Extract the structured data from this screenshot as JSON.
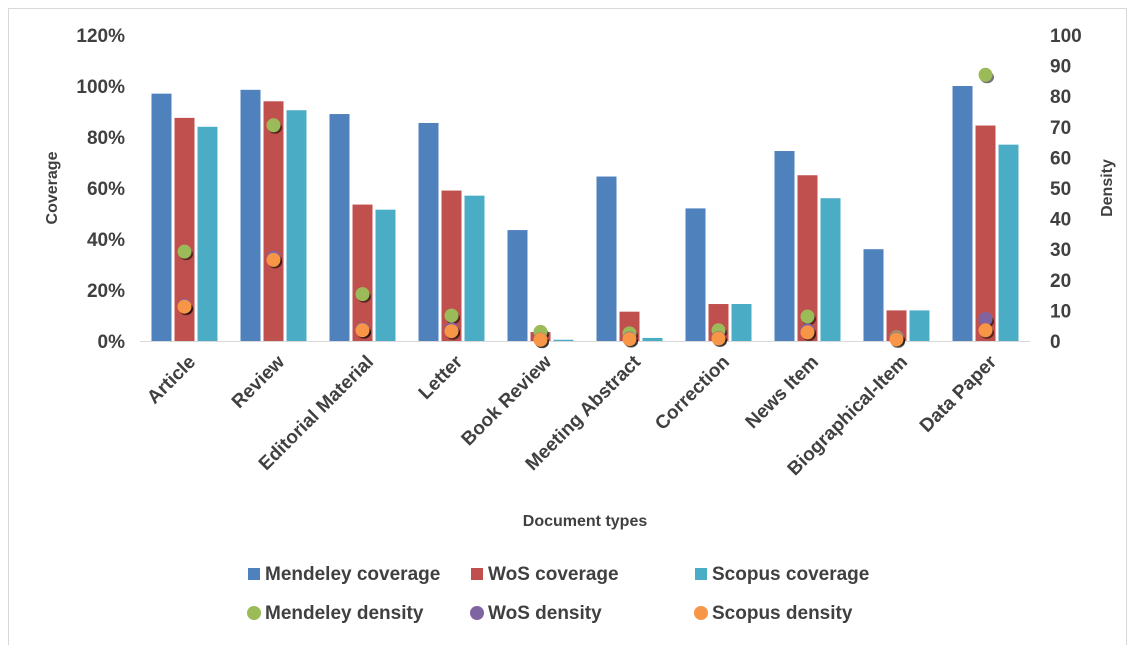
{
  "chart_data": {
    "type": "bar",
    "xlabel": "Document types",
    "ylabel": "Coverage",
    "y2label": "Density",
    "ylim": [
      0,
      1.2
    ],
    "y2lim": [
      0,
      100
    ],
    "yticks": [
      "0%",
      "20%",
      "40%",
      "60%",
      "80%",
      "100%",
      "120%"
    ],
    "y2ticks": [
      "0",
      "10",
      "20",
      "30",
      "40",
      "50",
      "60",
      "70",
      "80",
      "90",
      "100"
    ],
    "grid": false,
    "legend_position": "bottom",
    "categories": [
      "Article",
      "Review",
      "Editorial Material",
      "Letter",
      "Book Review",
      "Meeting Abstract",
      "Correction",
      "News Item",
      "Biographical-Item",
      "Data Paper"
    ],
    "bar_series": [
      {
        "name": "Mendeley coverage",
        "color": "#4f81bd",
        "values": [
          0.97,
          0.985,
          0.89,
          0.855,
          0.435,
          0.645,
          0.52,
          0.745,
          0.36,
          1.0
        ]
      },
      {
        "name": "WoS coverage",
        "color": "#c0504d",
        "values": [
          0.875,
          0.94,
          0.535,
          0.59,
          0.035,
          0.115,
          0.145,
          0.65,
          0.12,
          0.845
        ]
      },
      {
        "name": "Scopus coverage",
        "color": "#4bacc6",
        "values": [
          0.84,
          0.905,
          0.515,
          0.57,
          0.005,
          0.012,
          0.145,
          0.56,
          0.12,
          0.77
        ]
      }
    ],
    "point_series": [
      {
        "name": "Mendeley density",
        "color": "#9bbb59",
        "values": [
          29.2,
          70.5,
          15.3,
          8.3,
          3.0,
          2.5,
          3.5,
          8.0,
          1.2,
          87.0
        ]
      },
      {
        "name": "WoS density",
        "color": "#8064a2",
        "values": [
          11.5,
          27.2,
          3.8,
          3.8,
          0.5,
          0.8,
          1.0,
          3.5,
          0.8,
          7.2
        ]
      },
      {
        "name": "Scopus density",
        "color": "#f79646",
        "values": [
          11.2,
          26.5,
          3.5,
          3.2,
          0.4,
          0.6,
          0.8,
          2.8,
          0.5,
          3.5
        ]
      }
    ]
  }
}
